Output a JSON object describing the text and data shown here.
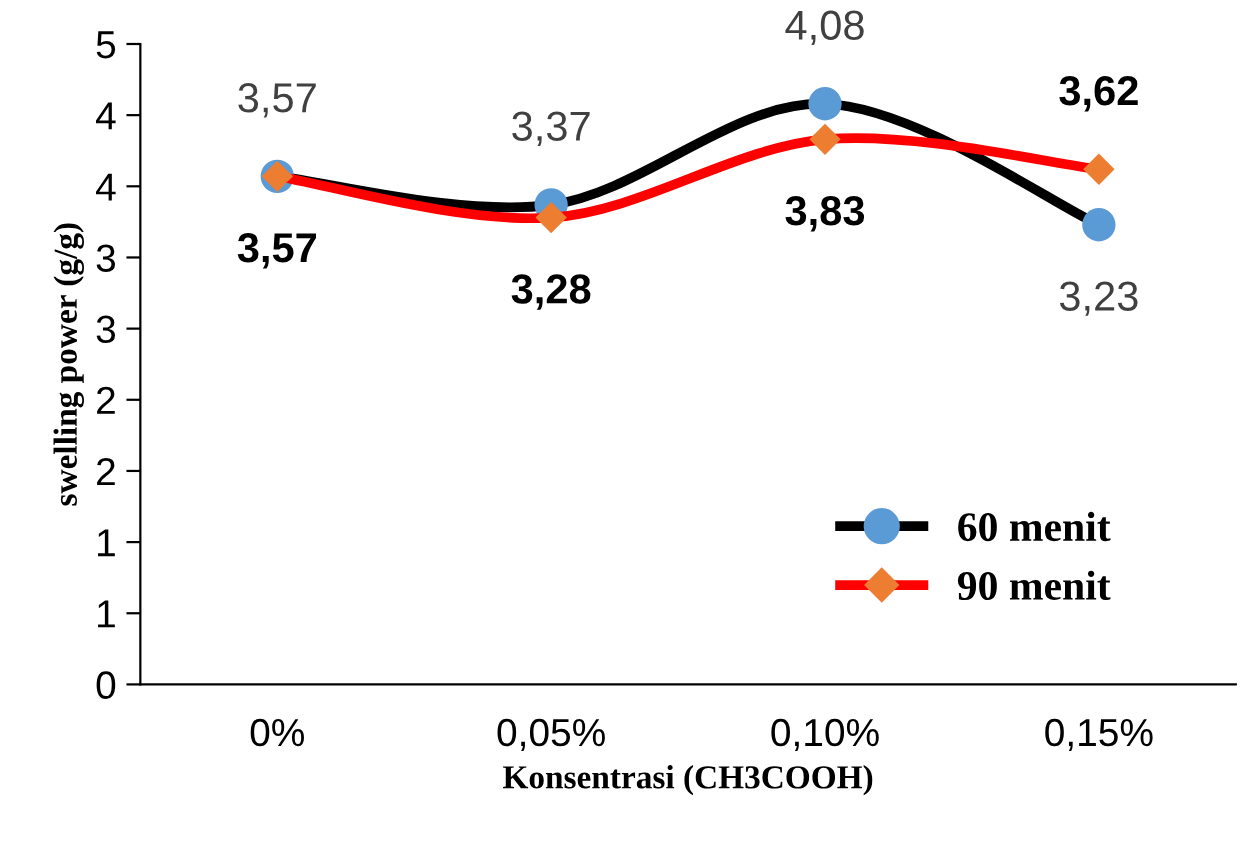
{
  "chart_data": {
    "type": "line",
    "xlabel": "Konsentrasi (CH3COOH)",
    "ylabel": "swelling power (g/g)",
    "categories": [
      "0%",
      "0,05%",
      "0,10%",
      "0,15%"
    ],
    "series": [
      {
        "name": "60 menit",
        "color": "#000000",
        "colors": [
          "#5b9bd5",
          "#5b9bd5",
          "#5b9bd5",
          "#5b9bd5"
        ],
        "marker": "circle",
        "values": [
          3.57,
          3.37,
          4.08,
          3.23
        ],
        "value_labels": [
          "3,57",
          "3,37",
          "4,08",
          "3,23"
        ]
      },
      {
        "name": "90 menit",
        "color": "#ff0000",
        "colors": [
          "#ed7d31",
          "#ed7d31",
          "#ed7d31",
          "#ed7d31"
        ],
        "marker": "diamond",
        "values": [
          3.57,
          3.28,
          3.83,
          3.62
        ],
        "value_labels": [
          "3,57",
          "3,28",
          "3,83",
          "3,62"
        ]
      }
    ],
    "ylim": [
      0,
      4.5
    ],
    "yticks": [
      {
        "value": 0,
        "label": "0"
      },
      {
        "value": 0.5,
        "label": "1"
      },
      {
        "value": 1,
        "label": "1"
      },
      {
        "value": 1.5,
        "label": "2"
      },
      {
        "value": 2,
        "label": "2"
      },
      {
        "value": 2.5,
        "label": "3"
      },
      {
        "value": 3,
        "label": "3"
      },
      {
        "value": 3.5,
        "label": "4"
      },
      {
        "value": 4,
        "label": "4"
      },
      {
        "value": 4.5,
        "label": "5"
      }
    ],
    "grid": false,
    "legend": "bottom right",
    "line_style": "solid"
  }
}
